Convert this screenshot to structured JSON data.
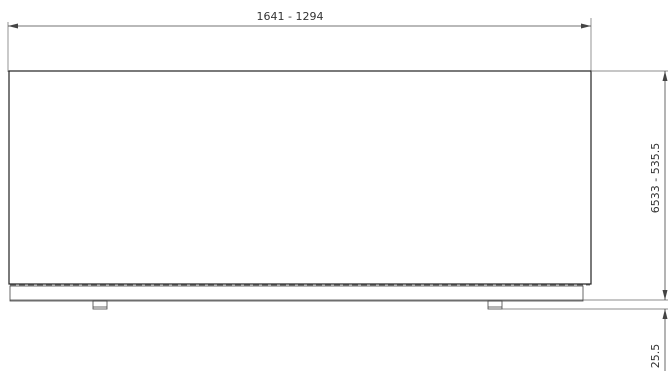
{
  "drawing": {
    "dimension_width": "1641 - 1294",
    "dimension_height": "6533 - 535.5",
    "dimension_foot": "25.5"
  }
}
